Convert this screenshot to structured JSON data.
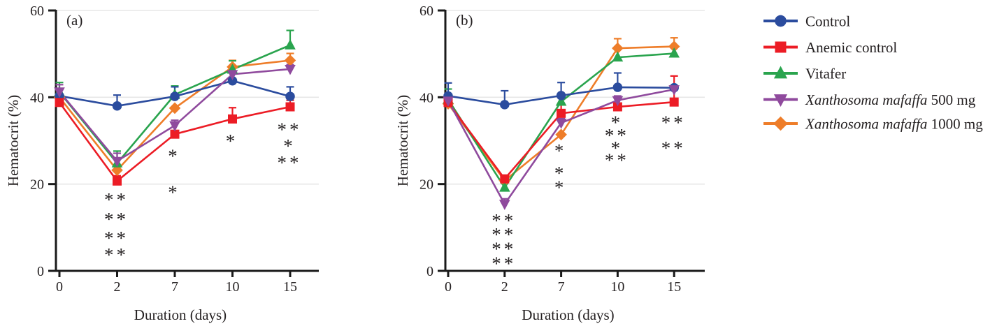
{
  "figure": {
    "y_axis_label": "Hematocrit (%)",
    "x_axis_label": "Duration (days)",
    "y_ticks": [
      "0",
      "20",
      "40",
      "60"
    ],
    "x_ticks": [
      "0",
      "2",
      "7",
      "10",
      "15"
    ],
    "colors": {
      "axis": "#1a1a1a",
      "gridline": "#e7e7e7",
      "text": "#231f20"
    },
    "series_meta": [
      {
        "id": "control",
        "label": "Control",
        "color": "#2b4c9e",
        "star_color": "#5a6fb5",
        "marker": "circle"
      },
      {
        "id": "anemic",
        "label": "Anemic control",
        "color": "#ec1c25",
        "star_color": "#f04a52",
        "marker": "square"
      },
      {
        "id": "vitafer",
        "label": "Vitafer",
        "color": "#2aa44e",
        "star_color": "#36ab61",
        "marker": "triangle-up"
      },
      {
        "id": "x500",
        "label_italic": "Xanthosoma mafaffa",
        "label_rest": " 500 mg",
        "color": "#8f4a9d",
        "star_color": "#9a62aa",
        "marker": "triangle-down"
      },
      {
        "id": "x1000",
        "label_italic": "Xanthosoma mafaffa",
        "label_rest": " 1000 mg",
        "color": "#ee7d29",
        "star_color": "#f69d60",
        "marker": "diamond"
      }
    ],
    "chart_data": [
      {
        "type": "line",
        "panel_label": "(a)",
        "title": "",
        "xlabel": "Duration (days)",
        "ylabel": "Hematocrit (%)",
        "x_categories": [
          0,
          2,
          7,
          10,
          15
        ],
        "ylim": [
          0,
          60
        ],
        "grid": "horizontal",
        "series": [
          {
            "id": "x1000",
            "values": [
              40.0,
              23.2,
              37.5,
              47.0,
              48.5
            ],
            "err_up": [
              0,
              0,
              0,
              1.5,
              1.6
            ]
          },
          {
            "id": "vitafer",
            "values": [
              41.2,
              24.8,
              40.6,
              46.4,
              52.0
            ],
            "err_up": [
              2.2,
              2.8,
              2.0,
              2.0,
              3.4
            ]
          },
          {
            "id": "control",
            "values": [
              40.3,
              38.0,
              40.2,
              43.8,
              40.2
            ],
            "err_up": [
              1.7,
              2.5,
              2.2,
              0,
              2.2
            ]
          },
          {
            "id": "anemic",
            "values": [
              38.8,
              20.7,
              31.5,
              35.0,
              37.8
            ],
            "err_up": [
              0,
              1.2,
              0,
              2.6,
              1.5
            ]
          },
          {
            "id": "x500",
            "values": [
              41.3,
              25.3,
              33.5,
              45.3,
              46.5
            ],
            "err_up": [
              1.6,
              1.8,
              1.2,
              0,
              1.0
            ]
          }
        ],
        "annotations": [
          {
            "day": 1,
            "value": 17.2,
            "text": "**",
            "series": "anemic"
          },
          {
            "day": 1,
            "value": 12.7,
            "text": "**",
            "series": "vitafer"
          },
          {
            "day": 1,
            "value": 8.4,
            "text": "**",
            "series": "x500"
          },
          {
            "day": 1,
            "value": 4.5,
            "text": "**",
            "series": "x1000"
          },
          {
            "day": 2,
            "value": 27.3,
            "text": "*",
            "series": "anemic"
          },
          {
            "day": 2,
            "value": 18.9,
            "text": "*",
            "series": "x500"
          },
          {
            "day": 3,
            "value": 30.7,
            "text": "*",
            "series": "anemic"
          },
          {
            "day": 4,
            "value": 33.4,
            "text": "**",
            "series": "vitafer"
          },
          {
            "day": 4,
            "value": 29.6,
            "text": "*",
            "series": "x500"
          },
          {
            "day": 4,
            "value": 25.7,
            "text": "**",
            "series": "x1000"
          }
        ]
      },
      {
        "type": "line",
        "panel_label": "(b)",
        "title": "",
        "xlabel": "Duration (days)",
        "ylabel": "Hematocrit (%)",
        "x_categories": [
          0,
          2,
          7,
          10,
          15
        ],
        "ylim": [
          0,
          60
        ],
        "grid": "horizontal",
        "series": [
          {
            "id": "x1000",
            "values": [
              38.5,
              20.8,
              31.4,
              51.3,
              51.7
            ],
            "err_up": [
              0,
              0,
              0,
              2.2,
              2.0
            ]
          },
          {
            "id": "vitafer",
            "values": [
              39.5,
              19.2,
              39.0,
              49.2,
              50.1
            ],
            "err_up": [
              2.4,
              0,
              0,
              0,
              0
            ]
          },
          {
            "id": "control",
            "values": [
              40.3,
              38.3,
              40.4,
              42.3,
              42.2
            ],
            "err_up": [
              3.0,
              3.2,
              3.0,
              3.3,
              0
            ]
          },
          {
            "id": "anemic",
            "values": [
              38.8,
              21.2,
              36.3,
              37.8,
              38.9
            ],
            "err_up": [
              0,
              0,
              2.3,
              0,
              6.0
            ]
          },
          {
            "id": "x500",
            "values": [
              39.2,
              15.4,
              34.1,
              39.3,
              41.8
            ],
            "err_up": [
              0,
              1.2,
              1.0,
              1.0,
              0
            ]
          }
        ],
        "annotations": [
          {
            "day": 1,
            "value": 12.4,
            "text": "**",
            "series": "anemic"
          },
          {
            "day": 1,
            "value": 9.2,
            "text": "**",
            "series": "vitafer"
          },
          {
            "day": 1,
            "value": 5.9,
            "text": "**",
            "series": "x500"
          },
          {
            "day": 1,
            "value": 2.5,
            "text": "**",
            "series": "x1000"
          },
          {
            "day": 2,
            "value": 28.5,
            "text": "*",
            "series": "anemic"
          },
          {
            "day": 2,
            "value": 23.3,
            "text": "*",
            "series": "x500"
          },
          {
            "day": 2,
            "value": 20.0,
            "text": "*",
            "series": "x1000"
          },
          {
            "day": 3,
            "value": 35.0,
            "text": "*",
            "series": "anemic"
          },
          {
            "day": 3,
            "value": 32.0,
            "text": "**",
            "series": "vitafer"
          },
          {
            "day": 3,
            "value": 29.1,
            "text": "*",
            "series": "x500"
          },
          {
            "day": 3,
            "value": 26.3,
            "text": "**",
            "series": "x1000"
          },
          {
            "day": 4,
            "value": 35.0,
            "text": "**",
            "series": "vitafer"
          },
          {
            "day": 4,
            "value": 29.1,
            "text": "**",
            "series": "x1000"
          }
        ]
      }
    ]
  }
}
